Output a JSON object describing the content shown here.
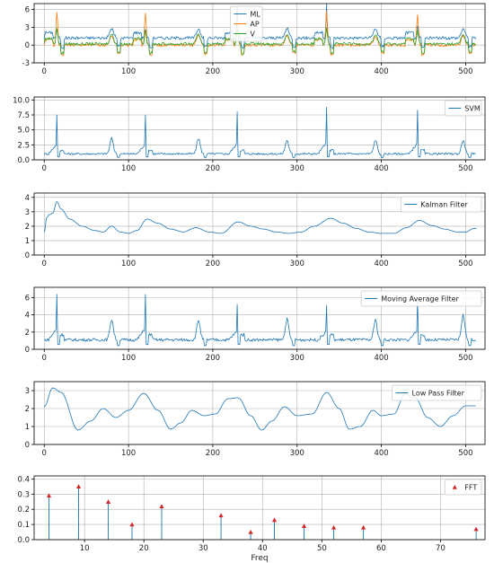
{
  "colors": {
    "ML": "#1f77b4",
    "AP": "#ff7f0e",
    "V": "#2ca02c",
    "single": "#1f77b4",
    "fft_marker": "#d62728",
    "grid": "#b0b0b0"
  },
  "chart_data": [
    {
      "type": "line",
      "grid": true,
      "xlim": [
        -12,
        523
      ],
      "ylim": [
        -3,
        7
      ],
      "xticks": [
        0,
        100,
        200,
        300,
        400,
        500
      ],
      "yticks": [
        -3,
        0,
        3,
        6
      ],
      "legend_position": "top-center",
      "beats": [
        15,
        120,
        229,
        335,
        443
      ],
      "minor_beats": [
        80,
        183,
        288,
        393,
        497
      ],
      "series": [
        {
          "name": "ML",
          "color_key": "ML",
          "baseline": 1.2,
          "peaks": [
            [
              15,
              2.5
            ],
            [
              120,
              2.8
            ],
            [
              229,
              3.2
            ],
            [
              335,
              3.5
            ],
            [
              443,
              3.0
            ]
          ],
          "spikes": [
            [
              229,
              6.5
            ],
            [
              335,
              7.0
            ]
          ]
        },
        {
          "name": "AP",
          "color_key": "AP",
          "baseline": 0.0,
          "peaks": [
            [
              15,
              5.8
            ],
            [
              120,
              5.5
            ],
            [
              229,
              5.2
            ],
            [
              335,
              5.8
            ],
            [
              443,
              5.3
            ]
          ],
          "spikes": []
        },
        {
          "name": "V",
          "color_key": "V",
          "baseline": 0.2,
          "peaks": [
            [
              15,
              3.0
            ],
            [
              120,
              2.5
            ],
            [
              229,
              2.8
            ],
            [
              335,
              3.0
            ],
            [
              443,
              2.6
            ]
          ],
          "spikes": []
        }
      ]
    },
    {
      "type": "line",
      "grid": true,
      "xlim": [
        -12,
        523
      ],
      "ylim": [
        0,
        10.5
      ],
      "xticks": [
        0,
        100,
        200,
        300,
        400,
        500
      ],
      "yticks": [
        0.0,
        2.5,
        5.0,
        7.5,
        10.0
      ],
      "ytick_labels": [
        "0.0",
        "2.5",
        "5.0",
        "7.5",
        "10.0"
      ],
      "legend_position": "top-right",
      "series": [
        {
          "name": "SVM",
          "color_key": "single",
          "baseline": 1.0,
          "beats": [
            15,
            120,
            229,
            335,
            443
          ],
          "beat_heights": [
            7.5,
            7.5,
            8.0,
            8.8,
            8.3
          ],
          "minor_beats": [
            80,
            183,
            288,
            393,
            497
          ],
          "minor_heights": [
            3.6,
            3.6,
            3.3,
            3.3,
            3.3
          ]
        }
      ]
    },
    {
      "type": "line",
      "grid": true,
      "xlim": [
        -12,
        523
      ],
      "ylim": [
        0,
        4.3
      ],
      "xticks": [
        0,
        100,
        200,
        300,
        400,
        500
      ],
      "yticks": [
        0,
        1,
        2,
        3,
        4
      ],
      "legend_position": "top-right",
      "series": [
        {
          "name": "Kalman Filter",
          "color_key": "single",
          "x": [
            0,
            3,
            6,
            10,
            15,
            20,
            30,
            45,
            60,
            70,
            80,
            90,
            100,
            110,
            122,
            135,
            150,
            165,
            180,
            195,
            210,
            230,
            245,
            260,
            275,
            290,
            305,
            320,
            340,
            355,
            370,
            385,
            400,
            415,
            430,
            445,
            460,
            475,
            490,
            500,
            510,
            513
          ],
          "y": [
            1.6,
            2.6,
            2.8,
            2.9,
            3.7,
            3.2,
            2.5,
            2.0,
            1.7,
            1.6,
            2.0,
            1.6,
            1.5,
            1.7,
            2.5,
            2.2,
            1.8,
            1.6,
            1.9,
            1.6,
            1.5,
            2.3,
            2.0,
            1.8,
            1.6,
            1.5,
            1.6,
            2.0,
            2.55,
            2.2,
            1.85,
            1.6,
            1.5,
            1.5,
            1.9,
            2.4,
            2.05,
            1.8,
            1.6,
            1.6,
            1.85,
            1.85
          ]
        }
      ]
    },
    {
      "type": "line",
      "grid": true,
      "xlim": [
        -12,
        523
      ],
      "ylim": [
        0,
        7.2
      ],
      "xticks": [
        0,
        100,
        200,
        300,
        400,
        500
      ],
      "yticks": [
        0,
        2,
        4,
        6
      ],
      "legend_position": "top-right",
      "series": [
        {
          "name": "Moving Average  Filter",
          "color_key": "single",
          "baseline": 1.1,
          "beats": [
            15,
            120,
            229,
            335,
            443
          ],
          "beat_heights": [
            6.4,
            6.4,
            5.2,
            5.1,
            5.9
          ],
          "minor_beats": [
            80,
            183,
            288,
            393,
            497
          ],
          "minor_heights": [
            3.5,
            3.4,
            3.5,
            3.4,
            4.0
          ]
        }
      ]
    },
    {
      "type": "line",
      "grid": true,
      "xlim": [
        -12,
        523
      ],
      "ylim": [
        0,
        3.5
      ],
      "xticks": [
        0,
        100,
        200,
        300,
        400,
        500
      ],
      "yticks": [
        0,
        1,
        2,
        3
      ],
      "legend_position": "top-right",
      "series": [
        {
          "name": "Low Pass Filter",
          "color_key": "single",
          "x": [
            0,
            10,
            20,
            40,
            55,
            70,
            85,
            100,
            118,
            135,
            150,
            162,
            175,
            190,
            203,
            218,
            230,
            245,
            258,
            270,
            285,
            300,
            318,
            335,
            350,
            362,
            375,
            390,
            400,
            415,
            428,
            440,
            455,
            470,
            485,
            500,
            512
          ],
          "y": [
            2.1,
            3.15,
            2.9,
            0.8,
            1.3,
            2.0,
            1.5,
            1.9,
            2.85,
            1.9,
            0.85,
            1.2,
            1.9,
            1.6,
            1.7,
            2.55,
            2.6,
            1.6,
            0.8,
            1.3,
            2.1,
            1.6,
            1.7,
            2.9,
            2.0,
            0.85,
            1.0,
            1.9,
            1.6,
            1.7,
            2.8,
            2.6,
            1.5,
            1.0,
            1.6,
            2.15,
            2.15
          ]
        }
      ]
    },
    {
      "type": "stem",
      "grid": true,
      "xlim": [
        1.5,
        77.5
      ],
      "ylim": [
        0,
        0.42
      ],
      "xticks": [
        10,
        20,
        30,
        40,
        50,
        60,
        70
      ],
      "yticks": [
        0.0,
        0.1,
        0.2,
        0.3,
        0.4
      ],
      "ytick_labels": [
        "0.0",
        "0.1",
        "0.2",
        "0.3",
        "0.4"
      ],
      "xlabel": "Freq",
      "legend_position": "top-right",
      "series": [
        {
          "name": "FFT",
          "color_key": "fft_marker",
          "x": [
            4,
            9,
            14,
            18,
            23,
            33,
            38,
            42,
            47,
            52,
            57,
            76
          ],
          "values": [
            0.29,
            0.35,
            0.25,
            0.1,
            0.22,
            0.16,
            0.05,
            0.13,
            0.09,
            0.08,
            0.08,
            0.07
          ]
        }
      ]
    }
  ]
}
